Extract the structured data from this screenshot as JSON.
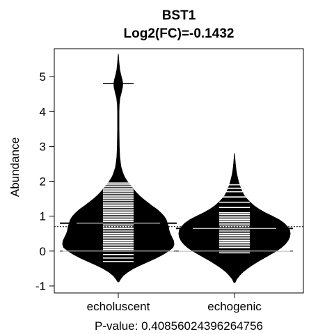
{
  "chart_data": {
    "type": "violin",
    "title": "BST1",
    "subtitle": "Log2(FC)=-0.1432",
    "xlabel": "P-value: 0.40856024396264756",
    "ylabel": "Abundance",
    "ylim": [
      -1.2,
      5.8
    ],
    "yticks": [
      -1,
      0,
      1,
      2,
      3,
      4,
      5
    ],
    "categories": [
      "echoluscent",
      "echogenic"
    ],
    "overall_mean": 0.7,
    "groups": [
      {
        "name": "echoluscent",
        "min": -0.88,
        "max": 5.65,
        "mean": 0.8,
        "median": 0.0,
        "outlier_value": 4.8,
        "density": [
          [
            -0.88,
            0.01
          ],
          [
            -0.8,
            0.04
          ],
          [
            -0.7,
            0.09
          ],
          [
            -0.6,
            0.17
          ],
          [
            -0.5,
            0.27
          ],
          [
            -0.4,
            0.4
          ],
          [
            -0.3,
            0.54
          ],
          [
            -0.2,
            0.68
          ],
          [
            -0.1,
            0.8
          ],
          [
            0.0,
            0.9
          ],
          [
            0.1,
            0.98
          ],
          [
            0.2,
            1.0
          ],
          [
            0.3,
            0.99
          ],
          [
            0.4,
            0.96
          ],
          [
            0.5,
            0.93
          ],
          [
            0.6,
            0.91
          ],
          [
            0.7,
            0.9
          ],
          [
            0.8,
            0.88
          ],
          [
            0.9,
            0.86
          ],
          [
            1.0,
            0.82
          ],
          [
            1.1,
            0.76
          ],
          [
            1.2,
            0.69
          ],
          [
            1.3,
            0.6
          ],
          [
            1.4,
            0.52
          ],
          [
            1.5,
            0.44
          ],
          [
            1.6,
            0.37
          ],
          [
            1.7,
            0.31
          ],
          [
            1.8,
            0.26
          ],
          [
            1.9,
            0.21
          ],
          [
            2.0,
            0.16
          ],
          [
            2.1,
            0.12
          ],
          [
            2.2,
            0.09
          ],
          [
            2.3,
            0.07
          ],
          [
            2.4,
            0.05
          ],
          [
            2.5,
            0.04
          ],
          [
            2.7,
            0.025
          ],
          [
            3.0,
            0.017
          ],
          [
            3.5,
            0.012
          ],
          [
            4.0,
            0.012
          ],
          [
            4.2,
            0.016
          ],
          [
            4.4,
            0.03
          ],
          [
            4.55,
            0.055
          ],
          [
            4.7,
            0.075
          ],
          [
            4.8,
            0.08
          ],
          [
            4.9,
            0.07
          ],
          [
            5.05,
            0.045
          ],
          [
            5.2,
            0.025
          ],
          [
            5.4,
            0.012
          ],
          [
            5.65,
            0.0
          ]
        ],
        "points": [
          -0.3,
          -0.2,
          -0.1,
          0.0,
          0.05,
          0.1,
          0.15,
          0.2,
          0.25,
          0.3,
          0.35,
          0.4,
          0.45,
          0.5,
          0.55,
          0.6,
          0.65,
          0.7,
          0.75,
          0.8,
          0.85,
          0.9,
          0.95,
          1.0,
          1.05,
          1.1,
          1.15,
          1.2,
          1.25,
          1.3,
          1.35,
          1.4,
          1.45,
          1.5,
          1.55,
          1.6,
          1.65,
          1.7,
          1.75,
          1.8,
          1.85,
          1.9,
          1.95,
          4.8
        ]
      },
      {
        "name": "echogenic",
        "min": -0.9,
        "max": 2.8,
        "mean": 0.65,
        "median": 0.0,
        "density": [
          [
            -0.9,
            0.01
          ],
          [
            -0.8,
            0.04
          ],
          [
            -0.7,
            0.09
          ],
          [
            -0.6,
            0.15
          ],
          [
            -0.5,
            0.23
          ],
          [
            -0.4,
            0.32
          ],
          [
            -0.3,
            0.42
          ],
          [
            -0.2,
            0.53
          ],
          [
            -0.1,
            0.64
          ],
          [
            0.0,
            0.75
          ],
          [
            0.1,
            0.84
          ],
          [
            0.2,
            0.91
          ],
          [
            0.3,
            0.96
          ],
          [
            0.4,
            0.99
          ],
          [
            0.5,
            1.0
          ],
          [
            0.6,
            0.99
          ],
          [
            0.7,
            0.95
          ],
          [
            0.8,
            0.89
          ],
          [
            0.9,
            0.8
          ],
          [
            1.0,
            0.68
          ],
          [
            1.1,
            0.55
          ],
          [
            1.2,
            0.44
          ],
          [
            1.3,
            0.35
          ],
          [
            1.4,
            0.28
          ],
          [
            1.5,
            0.22
          ],
          [
            1.6,
            0.17
          ],
          [
            1.7,
            0.14
          ],
          [
            1.8,
            0.11
          ],
          [
            1.9,
            0.09
          ],
          [
            2.0,
            0.07
          ],
          [
            2.1,
            0.055
          ],
          [
            2.2,
            0.04
          ],
          [
            2.3,
            0.03
          ],
          [
            2.4,
            0.022
          ],
          [
            2.5,
            0.015
          ],
          [
            2.6,
            0.01
          ],
          [
            2.7,
            0.005
          ],
          [
            2.8,
            0.0
          ]
        ],
        "points": [
          -0.05,
          0.0,
          0.1,
          0.15,
          0.2,
          0.25,
          0.3,
          0.35,
          0.4,
          0.45,
          0.5,
          0.55,
          0.6,
          0.65,
          0.7,
          0.75,
          0.8,
          0.85,
          0.9,
          0.95,
          1.0,
          1.05,
          1.1,
          1.25,
          1.4,
          1.55,
          1.7,
          1.8,
          1.9
        ]
      }
    ]
  }
}
